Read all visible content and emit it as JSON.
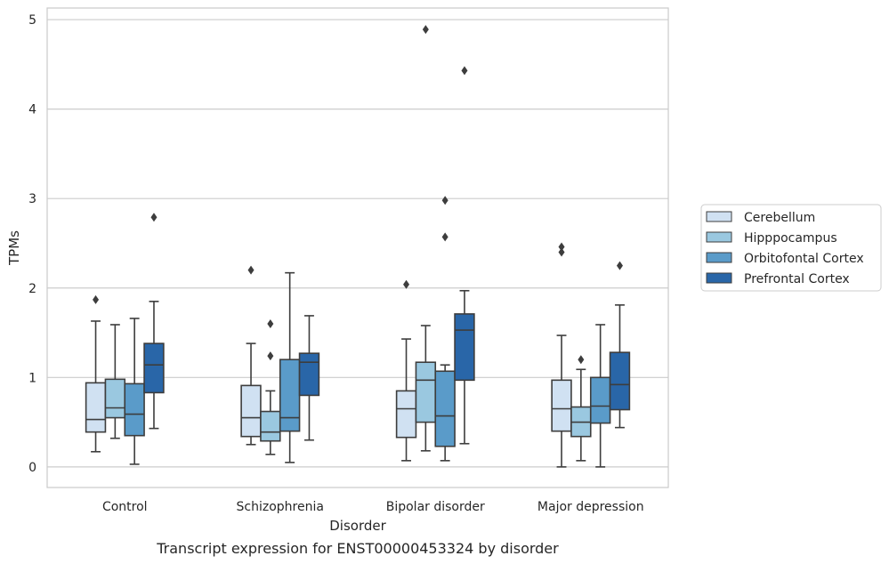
{
  "chart_data": {
    "type": "box",
    "caption": "Transcript expression for ENST00000453324 by disorder",
    "xlabel": "Disorder",
    "ylabel": "TPMs",
    "ylim": [
      -0.23,
      5.13
    ],
    "yticks": [
      0,
      1,
      2,
      3,
      4,
      5
    ],
    "grid": true,
    "legend_position": "right",
    "categories": [
      "Control",
      "Schizophrenia",
      "Bipolar disorder",
      "Major depression"
    ],
    "series": [
      {
        "name": "Cerebellum",
        "color": "#d0e1f2",
        "boxes": [
          {
            "whislo": 0.17,
            "q1": 0.39,
            "med": 0.53,
            "q3": 0.94,
            "whishi": 1.63,
            "fliers": [
              1.87
            ]
          },
          {
            "whislo": 0.25,
            "q1": 0.34,
            "med": 0.55,
            "q3": 0.91,
            "whishi": 1.38,
            "fliers": [
              2.2
            ]
          },
          {
            "whislo": 0.07,
            "q1": 0.33,
            "med": 0.65,
            "q3": 0.85,
            "whishi": 1.43,
            "fliers": [
              2.04
            ]
          },
          {
            "whislo": 0.0,
            "q1": 0.4,
            "med": 0.65,
            "q3": 0.97,
            "whishi": 1.47,
            "fliers": [
              2.4,
              2.46
            ]
          }
        ]
      },
      {
        "name": "Hipppocampus",
        "color": "#9ac8e0",
        "boxes": [
          {
            "whislo": 0.32,
            "q1": 0.55,
            "med": 0.66,
            "q3": 0.98,
            "whishi": 1.59,
            "fliers": []
          },
          {
            "whislo": 0.14,
            "q1": 0.29,
            "med": 0.39,
            "q3": 0.62,
            "whishi": 0.85,
            "fliers": [
              1.24,
              1.6
            ]
          },
          {
            "whislo": 0.18,
            "q1": 0.5,
            "med": 0.97,
            "q3": 1.17,
            "whishi": 1.58,
            "fliers": [
              4.89
            ]
          },
          {
            "whislo": 0.07,
            "q1": 0.34,
            "med": 0.5,
            "q3": 0.67,
            "whishi": 1.09,
            "fliers": [
              1.2
            ]
          }
        ]
      },
      {
        "name": "Orbitofontal Cortex",
        "color": "#5a9bc9",
        "boxes": [
          {
            "whislo": 0.03,
            "q1": 0.35,
            "med": 0.59,
            "q3": 0.93,
            "whishi": 1.66,
            "fliers": []
          },
          {
            "whislo": 0.05,
            "q1": 0.4,
            "med": 0.55,
            "q3": 1.2,
            "whishi": 2.17,
            "fliers": []
          },
          {
            "whislo": 0.07,
            "q1": 0.23,
            "med": 0.57,
            "q3": 1.07,
            "whishi": 1.14,
            "fliers": [
              2.57,
              2.98
            ]
          },
          {
            "whislo": 0.0,
            "q1": 0.49,
            "med": 0.68,
            "q3": 1.0,
            "whishi": 1.59,
            "fliers": []
          }
        ]
      },
      {
        "name": "Prefrontal Cortex",
        "color": "#2966a8",
        "boxes": [
          {
            "whislo": 0.43,
            "q1": 0.83,
            "med": 1.14,
            "q3": 1.38,
            "whishi": 1.85,
            "fliers": [
              2.79
            ]
          },
          {
            "whislo": 0.3,
            "q1": 0.8,
            "med": 1.17,
            "q3": 1.27,
            "whishi": 1.69,
            "fliers": []
          },
          {
            "whislo": 0.26,
            "q1": 0.97,
            "med": 1.53,
            "q3": 1.71,
            "whishi": 1.97,
            "fliers": [
              4.43
            ]
          },
          {
            "whislo": 0.44,
            "q1": 0.64,
            "med": 0.92,
            "q3": 1.28,
            "whishi": 1.81,
            "fliers": [
              2.25
            ]
          }
        ]
      }
    ]
  }
}
